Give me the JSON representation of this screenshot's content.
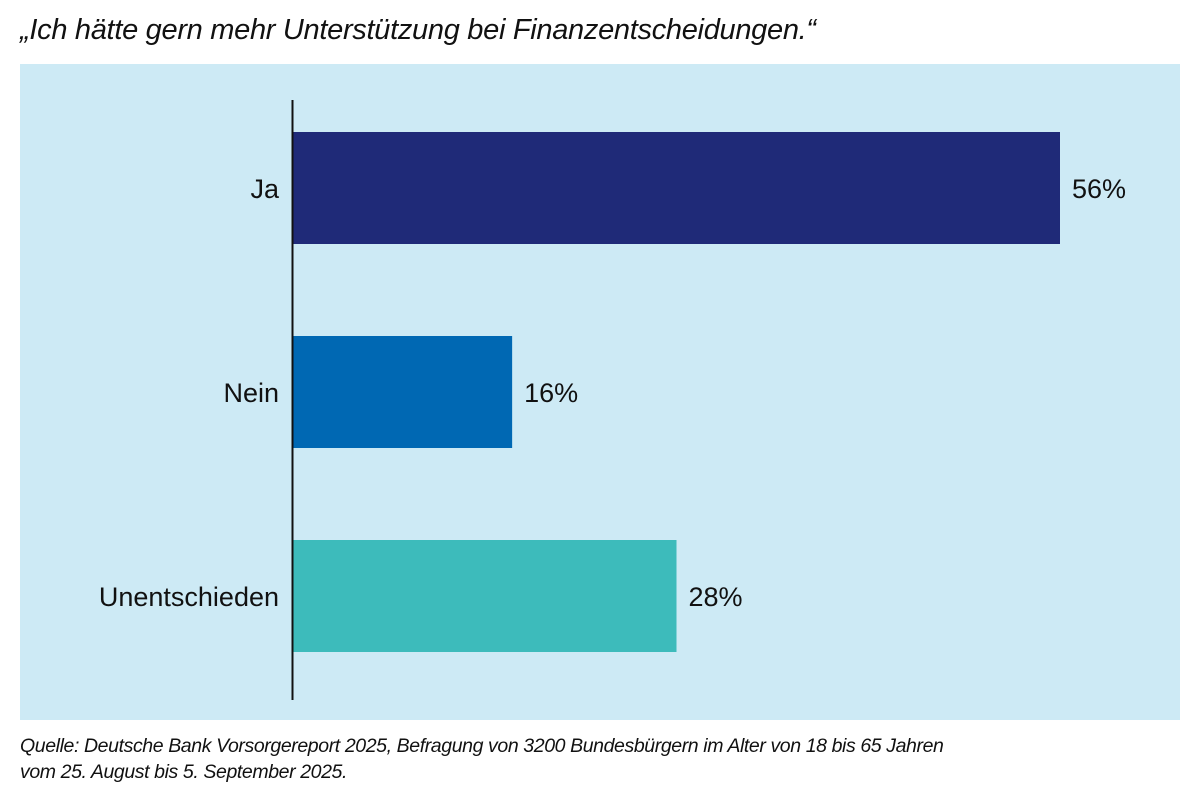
{
  "chart_data": {
    "type": "bar",
    "orientation": "horizontal",
    "title": "„Ich hätte gern mehr Unterstützung bei Finanzentscheidungen.“",
    "categories": [
      "Ja",
      "Nein",
      "Unentschieden"
    ],
    "values": [
      56,
      16,
      28
    ],
    "value_labels": [
      "56%",
      "16%",
      "28%"
    ],
    "unit": "%",
    "colors": [
      "#1f2a78",
      "#0068b3",
      "#3dbbbb"
    ],
    "background_color": "#cdeaf5",
    "xlim": [
      0,
      56
    ],
    "grid": false,
    "legend": "none",
    "xlabel": "",
    "ylabel": ""
  },
  "footer": {
    "source_line1": "Quelle: Deutsche Bank Vorsorgereport 2025, Befragung von 3200 Bundesbürgern im Alter von 18 bis 65 Jahren",
    "source_line2": "vom 25. August bis 5. September 2025."
  }
}
